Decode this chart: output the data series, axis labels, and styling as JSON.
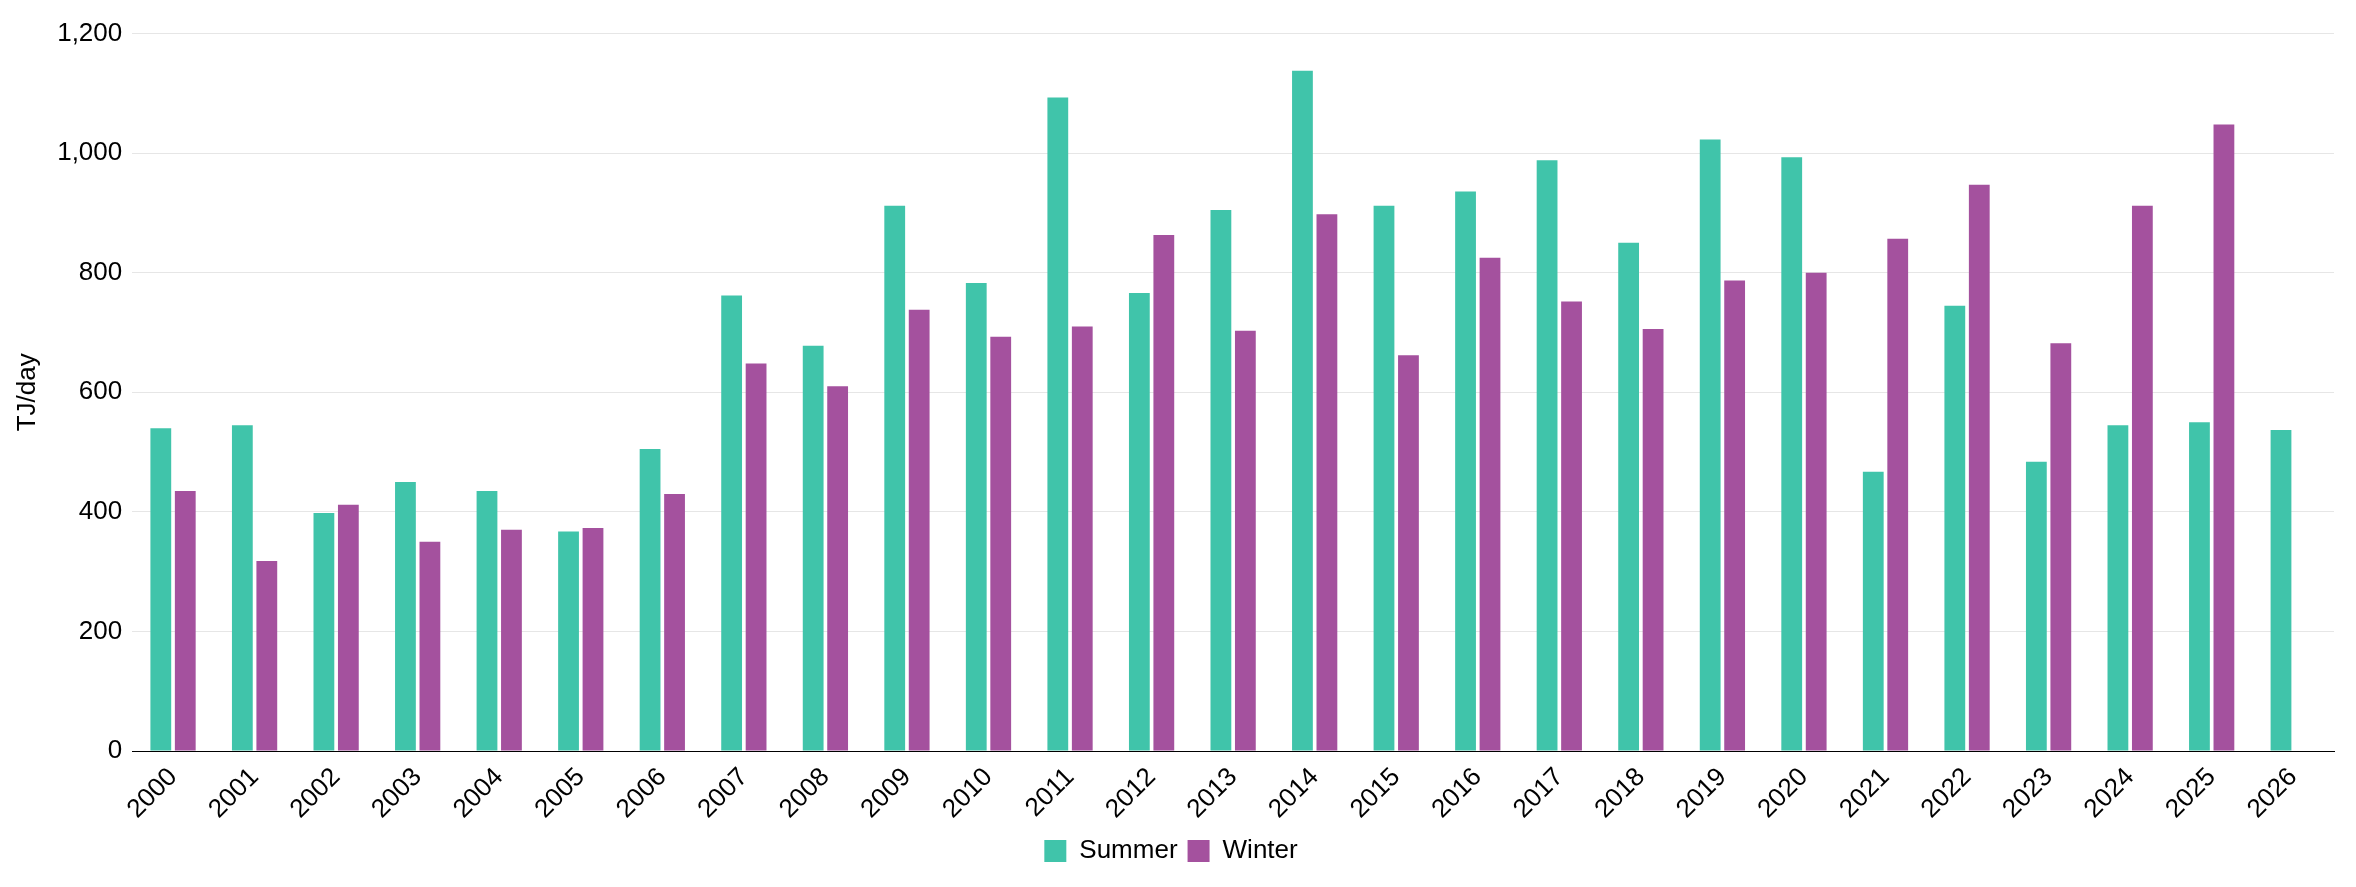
{
  "chart_data": {
    "type": "bar",
    "ylabel": "TJ/day",
    "categories": [
      "2000",
      "2001",
      "2002",
      "2003",
      "2004",
      "2005",
      "2006",
      "2007",
      "2008",
      "2009",
      "2010",
      "2011",
      "2012",
      "2013",
      "2014",
      "2015",
      "2016",
      "2017",
      "2018",
      "2019",
      "2020",
      "2021",
      "2022",
      "2023",
      "2024",
      "2025",
      "2026"
    ],
    "series": [
      {
        "name": "Summer",
        "color": "#40c4aa",
        "values": [
          540,
          545,
          398,
          450,
          435,
          367,
          505,
          762,
          678,
          912,
          783,
          1093,
          766,
          905,
          1138,
          912,
          936,
          988,
          850,
          1023,
          993,
          467,
          745,
          484,
          545,
          550,
          537
        ]
      },
      {
        "name": "Winter",
        "color": "#a4519e",
        "values": [
          435,
          318,
          412,
          350,
          370,
          373,
          430,
          648,
          610,
          738,
          693,
          710,
          863,
          703,
          898,
          662,
          825,
          752,
          706,
          787,
          800,
          857,
          947,
          682,
          912,
          1048,
          null
        ]
      }
    ],
    "ylim": [
      0,
      1200
    ],
    "yticks": [
      {
        "value": 0,
        "label": "0"
      },
      {
        "value": 200,
        "label": "200"
      },
      {
        "value": 400,
        "label": "400"
      },
      {
        "value": 600,
        "label": "600"
      },
      {
        "value": 800,
        "label": "800"
      },
      {
        "value": 1000,
        "label": "1,000"
      },
      {
        "value": 1200,
        "label": "1,200"
      }
    ],
    "grid": "y",
    "legend": "bottom"
  }
}
